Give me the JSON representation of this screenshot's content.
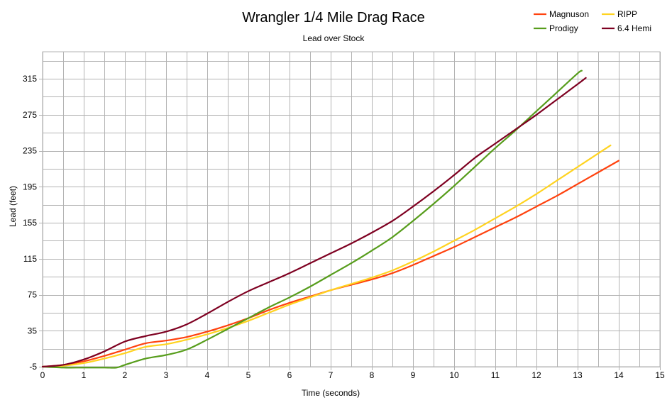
{
  "chart_data": {
    "type": "line",
    "title": "Wrangler 1/4 Mile Drag Race",
    "subtitle": "Lead over Stock",
    "xlabel": "Time (seconds)",
    "ylabel": "Lead (feet)",
    "xlim": [
      0,
      15
    ],
    "ylim": [
      -5,
      345
    ],
    "x_ticks": [
      0,
      1,
      2,
      3,
      4,
      5,
      6,
      7,
      8,
      9,
      10,
      11,
      12,
      13,
      14,
      15
    ],
    "x_tick_labels": [
      "0",
      "1",
      "2",
      "3",
      "4",
      "5",
      "6",
      "7",
      "8",
      "9",
      "10",
      "11",
      "12",
      "13",
      "14",
      "15"
    ],
    "y_ticks": [
      -5,
      35,
      75,
      115,
      155,
      195,
      235,
      275,
      315
    ],
    "y_tick_labels": [
      "-5",
      "35",
      "75",
      "115",
      "155",
      "195",
      "235",
      "275",
      "315"
    ],
    "grid": true,
    "legend_position": "top-right",
    "series": [
      {
        "name": "Magnuson",
        "color": "#ff420e",
        "x": [
          0,
          0.5,
          1,
          1.5,
          2,
          2.5,
          3,
          3.5,
          4,
          4.5,
          5,
          5.5,
          6,
          6.5,
          7,
          7.5,
          8,
          8.5,
          9,
          9.5,
          10,
          10.5,
          11,
          11.5,
          12,
          12.5,
          13,
          13.5,
          14
        ],
        "y": [
          -5,
          -3,
          1,
          7,
          14,
          21,
          24,
          28,
          34,
          41,
          49,
          58,
          66,
          73,
          80,
          86,
          92,
          99,
          108,
          118,
          128,
          139,
          150,
          161,
          173,
          185,
          198,
          211,
          224
        ]
      },
      {
        "name": "RIPP",
        "color": "#ffd320",
        "x": [
          0,
          0.5,
          1,
          1.5,
          2,
          2.5,
          3,
          3.5,
          4,
          4.5,
          5,
          5.5,
          6,
          6.5,
          7,
          7.5,
          8,
          8.5,
          9,
          9.5,
          10,
          10.5,
          11,
          11.5,
          12,
          12.5,
          13,
          13.5,
          13.8
        ],
        "y": [
          -5,
          -4,
          -1,
          4,
          10,
          17,
          20,
          25,
          31,
          38,
          46,
          55,
          64,
          72,
          80,
          87,
          94,
          102,
          112,
          123,
          135,
          147,
          160,
          173,
          187,
          202,
          217,
          232,
          241
        ]
      },
      {
        "name": "Prodigy",
        "color": "#579d1c",
        "x": [
          0,
          0.5,
          1,
          1.5,
          1.8,
          2,
          2.5,
          3,
          3.5,
          4,
          4.5,
          5,
          5.5,
          6,
          6.5,
          7,
          7.5,
          8,
          8.5,
          9,
          9.5,
          10,
          10.5,
          11,
          11.5,
          12,
          12.5,
          13,
          13.1
        ],
        "y": [
          -5,
          -6,
          -6,
          -6,
          -6,
          -3,
          4,
          8,
          14,
          25,
          37,
          49,
          61,
          72,
          84,
          97,
          110,
          124,
          139,
          157,
          176,
          196,
          217,
          238,
          258,
          279,
          300,
          321,
          324
        ]
      },
      {
        "name": "6.4 Hemi",
        "color": "#7e0021",
        "x": [
          0,
          0.5,
          1,
          1.5,
          2,
          2.5,
          3,
          3.5,
          4,
          4.5,
          5,
          5.5,
          6,
          6.5,
          7,
          7.5,
          8,
          8.5,
          9,
          9.5,
          10,
          10.5,
          11,
          11.5,
          12,
          12.5,
          13,
          13.2
        ],
        "y": [
          -5,
          -3,
          3,
          12,
          23,
          29,
          34,
          42,
          54,
          67,
          79,
          89,
          99,
          110,
          121,
          132,
          144,
          157,
          173,
          190,
          208,
          227,
          243,
          259,
          275,
          292,
          309,
          316
        ]
      }
    ]
  }
}
